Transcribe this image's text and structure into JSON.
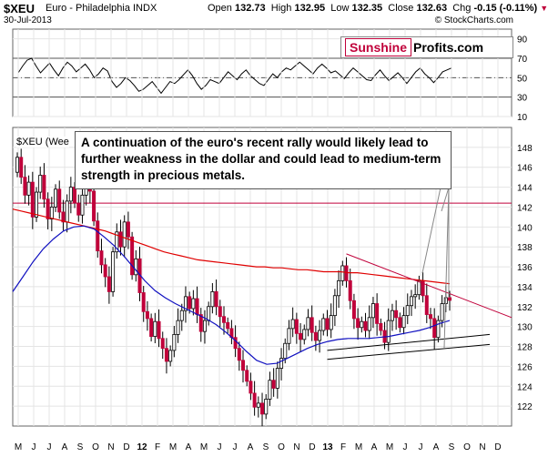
{
  "header": {
    "symbol": "$XEU",
    "description": "Euro - Philadelphia INDX",
    "date": "30-Jul-2013",
    "open_label": "Open",
    "open": "132.73",
    "high_label": "High",
    "high": "132.95",
    "low_label": "Low",
    "low": "132.35",
    "close_label": "Close",
    "close": "132.63",
    "chg_label": "Chg",
    "chg": "-0.15 (-0.11%)",
    "chg_arrow": "▼",
    "copyright": "© StockCharts.com"
  },
  "brand": {
    "part1": "Sunshine",
    "part2": "Profits.com"
  },
  "price_label": "$XEU (Wee",
  "annotation": "A continuation of the euro's recent rally would likely lead to further weakness in the dollar and could lead to medium-term strength in precious metals.",
  "colors": {
    "up": "#ffffff",
    "down": "#c0003a",
    "ma_long": "#e00000",
    "ma_short": "#1010c0",
    "resistance": "#c0003a",
    "support": "#000000"
  },
  "chart_data": [
    {
      "type": "line",
      "name": "RSI",
      "ylim": [
        10,
        100
      ],
      "yticks": [
        10,
        30,
        50,
        70,
        90
      ],
      "reference_lines": [
        30,
        50,
        70
      ],
      "values": [
        55,
        62,
        68,
        70,
        62,
        55,
        60,
        65,
        58,
        52,
        60,
        66,
        62,
        56,
        60,
        64,
        58,
        50,
        54,
        60,
        57,
        46,
        40,
        44,
        50,
        47,
        42,
        36,
        38,
        42,
        46,
        40,
        34,
        40,
        46,
        44,
        48,
        53,
        58,
        52,
        44,
        38,
        42,
        48,
        46,
        44,
        50,
        56,
        52,
        48,
        54,
        58,
        52,
        48,
        44,
        42,
        48,
        54,
        50,
        56,
        60,
        58,
        62,
        66,
        62,
        58,
        54,
        60,
        64,
        60,
        55,
        57,
        53,
        49,
        55,
        60,
        56,
        52,
        48,
        47,
        53,
        58,
        52,
        47,
        51,
        55,
        50,
        44,
        50,
        56,
        60,
        54,
        50,
        45,
        50,
        56,
        58,
        60
      ]
    },
    {
      "type": "candlestick",
      "name": "$XEU (Weekly)",
      "ylim": [
        120,
        150
      ],
      "yticks": [
        122,
        124,
        126,
        128,
        130,
        132,
        134,
        136,
        138,
        140,
        142,
        144,
        146,
        148
      ],
      "x_tick_labels": [
        "M",
        "J",
        "J",
        "A",
        "S",
        "O",
        "N",
        "D",
        "12",
        "F",
        "M",
        "A",
        "M",
        "J",
        "J",
        "A",
        "S",
        "O",
        "N",
        "D",
        "13",
        "F",
        "M",
        "A",
        "M",
        "J",
        "J",
        "A",
        "S",
        "O",
        "N",
        "D"
      ],
      "close": [
        147.0,
        145.0,
        143.2,
        144.5,
        141.0,
        143.5,
        145.2,
        142.8,
        140.8,
        142.0,
        143.8,
        141.5,
        140.5,
        142.6,
        144.0,
        142.4,
        141.2,
        143.2,
        145.0,
        143.6,
        140.6,
        137.6,
        136.2,
        135.0,
        133.5,
        137.5,
        139.5,
        138.0,
        140.5,
        139.0,
        135.2,
        136.8,
        133.4,
        131.5,
        130.8,
        129.0,
        130.5,
        128.8,
        127.8,
        126.5,
        127.6,
        129.2,
        130.6,
        131.6,
        133.0,
        131.8,
        132.8,
        131.2,
        129.5,
        130.6,
        132.0,
        133.5,
        132.0,
        131.0,
        130.4,
        129.8,
        128.9,
        127.8,
        126.6,
        125.6,
        124.5,
        123.3,
        121.9,
        122.3,
        121.2,
        122.7,
        124.6,
        123.8,
        125.8,
        126.8,
        128.3,
        129.8,
        130.7,
        129.3,
        128.7,
        129.7,
        130.9,
        129.4,
        128.6,
        129.6,
        130.8,
        129.7,
        131.1,
        133.1,
        134.6,
        136.1,
        134.6,
        132.6,
        130.8,
        129.9,
        130.5,
        129.6,
        130.9,
        132.3,
        130.3,
        129.6,
        128.4,
        130.6,
        131.6,
        130.9,
        129.9,
        131.1,
        132.1,
        133.0,
        133.2,
        134.6,
        133.1,
        131.2,
        130.8,
        128.9,
        130.6,
        132.3,
        132.9,
        132.63
      ],
      "ma_long": [
        141.8,
        141.6,
        141.4,
        141.2,
        141.0,
        140.8,
        140.6,
        140.4,
        140.2,
        140.0,
        139.8,
        139.6,
        139.3,
        139.0,
        138.7,
        138.4,
        138.1,
        137.8,
        137.5,
        137.3,
        137.1,
        136.9,
        136.7,
        136.6,
        136.5,
        136.4,
        136.3,
        136.2,
        136.1,
        136.0,
        136.0,
        135.9,
        135.9,
        135.8,
        135.7,
        135.7,
        135.6,
        135.5,
        135.5,
        135.5,
        135.4,
        135.4,
        135.3,
        135.2,
        135.1,
        135.0,
        134.9,
        134.8,
        134.7,
        134.6,
        134.5,
        134.4,
        134.3
      ],
      "ma_short": [
        133.5,
        135.0,
        136.5,
        137.8,
        138.8,
        139.6,
        140.0,
        140.1,
        139.8,
        139.0,
        138.1,
        137.0,
        135.8,
        134.6,
        133.6,
        132.9,
        132.3,
        131.8,
        131.3,
        130.8,
        130.2,
        129.4,
        128.5,
        127.5,
        126.6,
        126.2,
        126.3,
        126.8,
        127.3,
        127.8,
        128.2,
        128.5,
        128.7,
        128.8,
        128.8,
        128.8,
        128.9,
        129.0,
        129.2,
        129.4,
        129.6,
        129.9,
        130.3,
        130.6
      ],
      "horizontal_line": 142.4,
      "annotations": [
        "A continuation of the euro's recent rally would likely lead to further weakness in the dollar and could lead to medium-term strength in precious metals."
      ]
    }
  ]
}
